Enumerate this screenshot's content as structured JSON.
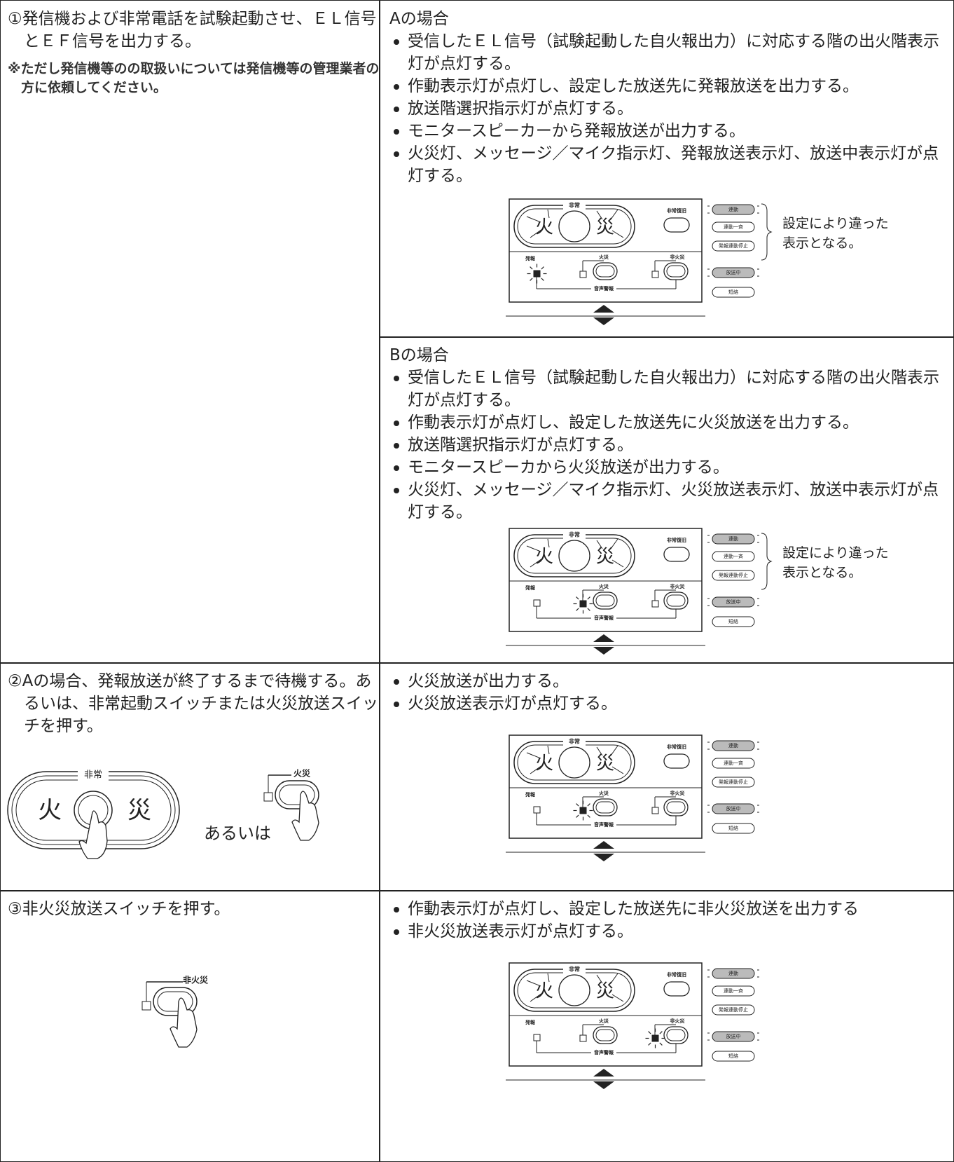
{
  "rows": [
    {
      "step": "①発信機および非常電話を試験起動させ、ＥＬ信号とＥＦ信号を出力する。",
      "note": "※ただし発信機等のの取扱いについては発信機等の管理業者の方に依頼してください。",
      "results": [
        {
          "heading": "Aの場合",
          "bullets": [
            "受信したＥＬ信号（試験起動した自火報出力）に対応する階の出火階表示灯が点灯する。",
            "作動表示灯が点灯し、設定した放送先に発報放送を出力する。",
            "放送階選択指示灯が点灯する。",
            "モニタースピーカーから発報放送が出力する。",
            "火災灯、メッセージ／マイク指示灯、発報放送表示灯、放送中表示灯が点灯する。"
          ]
        },
        {
          "heading": "Bの場合",
          "bullets": [
            "受信したＥＬ信号（試験起動した自火報出力）に対応する階の出火階表示灯が点灯する。",
            "作動表示灯が点灯し、設定した放送先に火災放送を出力する。",
            "放送階選択指示灯が点灯する。",
            "モニタースピーカから火災放送が出力する。",
            "火災灯、メッセージ／マイク指示灯、火災放送表示灯、放送中表示灯が点灯する。"
          ]
        }
      ]
    },
    {
      "step": "②Aの場合、発報放送が終了するまで待機する。あるいは、非常起動スイッチまたは火災放送スイッチを押す。",
      "illustration": {
        "emergency": "非常",
        "fire": "火",
        "disaster": "災",
        "or": "あるいは",
        "switch": "火災"
      },
      "results": [
        {
          "bullets": [
            "火災放送が出力する。",
            "火災放送表示灯が点灯する。"
          ]
        }
      ]
    },
    {
      "step": "③非火災放送スイッチを押す。",
      "illustration": {
        "switch": "非火災"
      },
      "results": [
        {
          "bullets": [
            "作動表示灯が点灯し、設定した放送先に非火災放送を出力する",
            "非火災放送表示灯が点灯する。"
          ]
        }
      ]
    }
  ],
  "panel": {
    "emergency": "非常",
    "fire": "火",
    "disaster": "災",
    "reset": "非常復旧",
    "link": "連動",
    "link_all": "連動一斉",
    "stop_link": "発報連動停止",
    "alarm": "発報",
    "fire_broadcast": "火災",
    "non_fire": "非火災",
    "voice_alarm": "音声警報",
    "broadcasting": "放送中",
    "short": "短絡",
    "note": "設定により違った表示となる。"
  }
}
